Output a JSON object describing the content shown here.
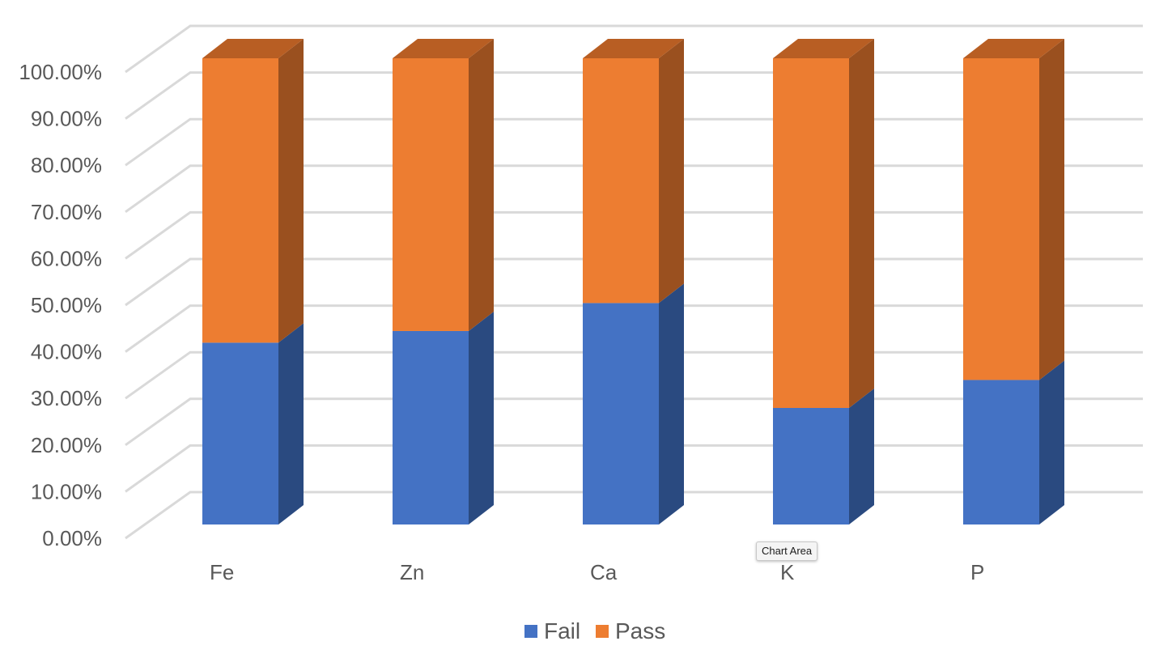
{
  "chart_data": {
    "type": "bar",
    "stacked": true,
    "percent_stacked": true,
    "three_d": true,
    "categories": [
      "Fe",
      "Zn",
      "Ca",
      "K",
      "P"
    ],
    "series": [
      {
        "name": "Fail",
        "values": [
          0.39,
          0.415,
          0.475,
          0.25,
          0.31
        ]
      },
      {
        "name": "Pass",
        "values": [
          0.61,
          0.585,
          0.525,
          0.75,
          0.69
        ]
      }
    ],
    "y_ticks": [
      "0.00%",
      "10.00%",
      "20.00%",
      "30.00%",
      "40.00%",
      "50.00%",
      "60.00%",
      "70.00%",
      "80.00%",
      "90.00%",
      "100.00%"
    ],
    "ylim": [
      0,
      1
    ],
    "grid": true,
    "legend_position": "bottom",
    "colors": {
      "fail_front": "#4472C4",
      "fail_side": "#2A4A80",
      "pass_front": "#ED7D31",
      "pass_side": "#9A501F",
      "pass_top": "#B85E23",
      "grid": "#D9D9D9"
    }
  },
  "tooltip": {
    "text": "Chart Area"
  }
}
